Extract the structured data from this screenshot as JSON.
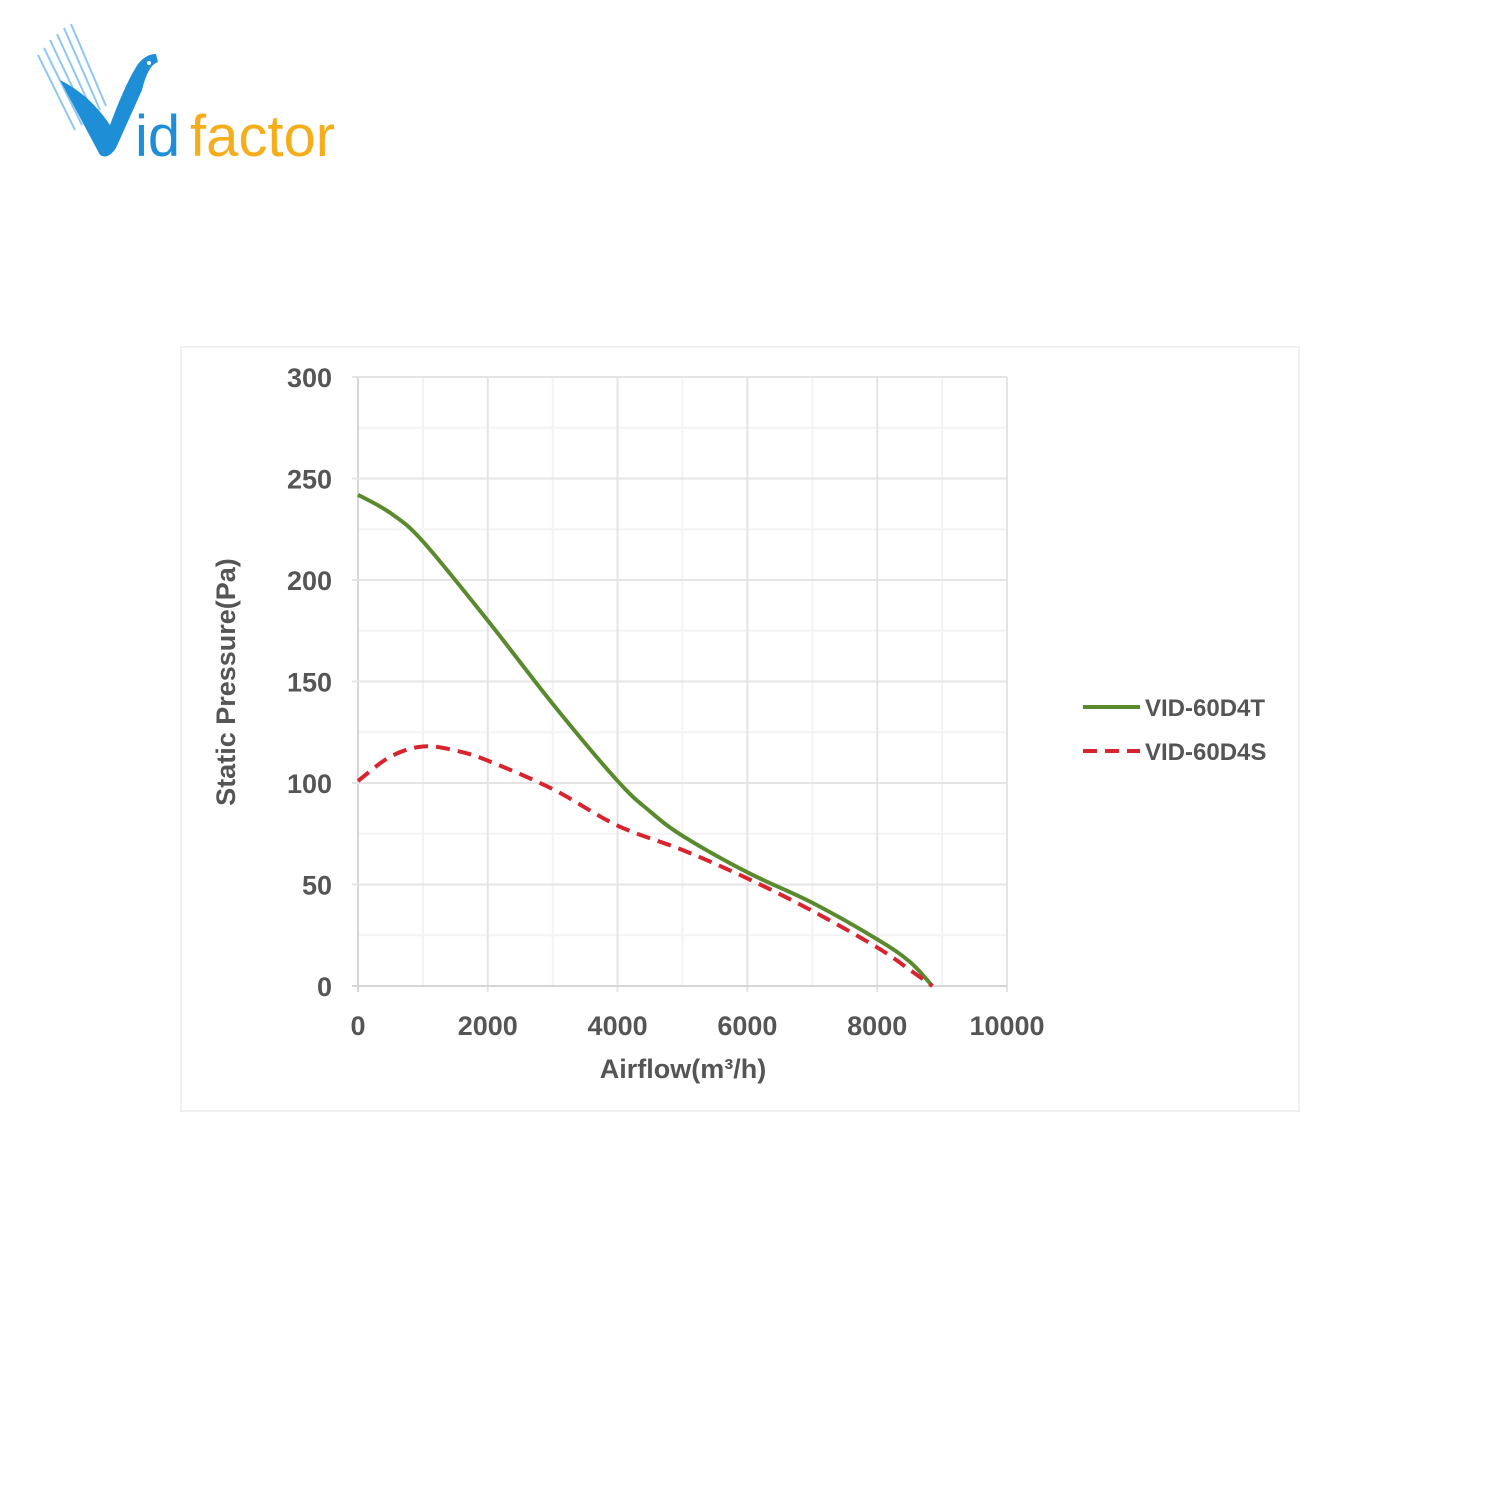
{
  "logo": {
    "text": "Vidfactor",
    "prefix": "id",
    "suffix": "factor",
    "blue": "#1e8fd6",
    "orange": "#f5ad1c"
  },
  "chart_data": {
    "type": "line",
    "title": "",
    "xlabel": "Airflow(m³/h)",
    "ylabel": "Static Pressure(Pa)",
    "xlim": [
      0,
      10000
    ],
    "ylim": [
      0,
      300
    ],
    "xticks": [
      0,
      2000,
      4000,
      6000,
      8000,
      10000
    ],
    "yticks": [
      0,
      50,
      100,
      150,
      200,
      250,
      300
    ],
    "grid": true,
    "legend_position": "right",
    "series": [
      {
        "name": "VID-60D4T",
        "color": "#5a8a2e",
        "style": "solid",
        "x": [
          0,
          500,
          1000,
          2000,
          3000,
          4000,
          4500,
          5000,
          6000,
          7000,
          8000,
          8500,
          8850
        ],
        "y": [
          242,
          233,
          219,
          180,
          139,
          101,
          86,
          74,
          56,
          41,
          23,
          12,
          0
        ]
      },
      {
        "name": "VID-60D4S",
        "color": "#d8242f",
        "style": "dashed",
        "x": [
          0,
          500,
          1000,
          1500,
          2000,
          3000,
          4000,
          5000,
          6000,
          7000,
          8000,
          8500,
          8850
        ],
        "y": [
          101,
          113,
          118,
          116,
          111,
          97,
          79,
          67,
          53,
          37,
          19,
          8,
          0
        ]
      }
    ]
  }
}
